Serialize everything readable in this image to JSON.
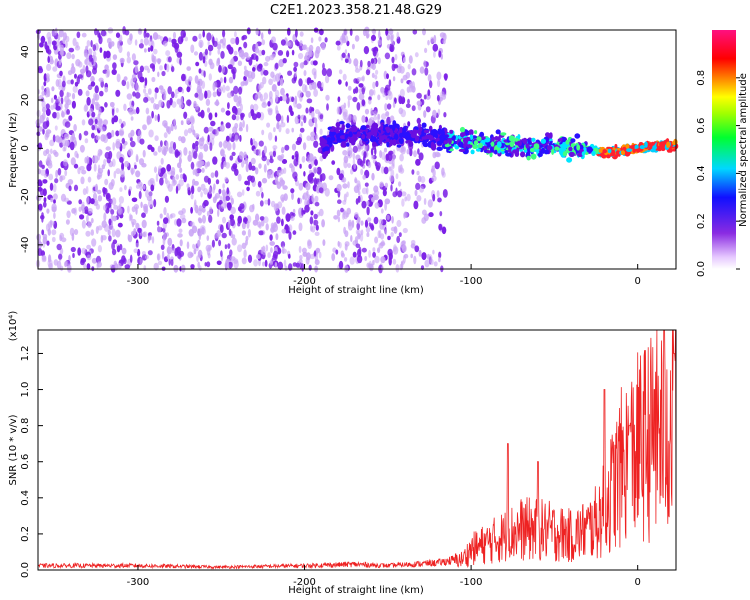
{
  "title": "C2E1.2023.358.21.48.G29",
  "colors": {
    "snr_line": "#ee2222",
    "scatter_dots": "#7b1fe6",
    "axis": "#000000"
  },
  "chart_data": [
    {
      "type": "heatmap",
      "xlabel": "Height of straight line (km)",
      "ylabel": "Frequency (Hz)",
      "xlim": [
        -360,
        23
      ],
      "ylim": [
        -50,
        49
      ],
      "xticks": [
        -300,
        -200,
        -100,
        0
      ],
      "yticks": [
        -40,
        -20,
        0,
        20,
        40
      ],
      "xtick_labels": [
        "-300",
        "-200",
        "-100",
        "0"
      ],
      "ytick_labels": [
        "-40",
        "-20",
        "0",
        "20",
        "40"
      ],
      "colorbar": {
        "label": "Normalized spectral amplitude",
        "range": [
          0,
          1
        ],
        "ticks": [
          0,
          0.2,
          0.4,
          0.6,
          0.8
        ],
        "tick_labels": [
          "0.0",
          "0.2",
          "0.4",
          "0.6",
          "0.8"
        ],
        "colormap": "rainbow (white-violet-blue-cyan-green-yellow-red-magenta)"
      },
      "features": {
        "noise_band": {
          "x_range": [
            -360,
            -115
          ],
          "freq_range": [
            -50,
            49
          ]
        },
        "signal_band": {
          "points": [
            [
              -185,
              5
            ],
            [
              -150,
              6
            ],
            [
              -130,
              5
            ],
            [
              -100,
              3
            ],
            [
              -75,
              1
            ],
            [
              -50,
              1
            ],
            [
              -30,
              0
            ],
            [
              -20,
              -2
            ],
            [
              -10,
              -1
            ],
            [
              0,
              0
            ],
            [
              10,
              1
            ],
            [
              20,
              1
            ]
          ]
        }
      }
    },
    {
      "type": "line",
      "xlabel": "Height of straight line (km)",
      "ylabel": "SNR (10 * v/v)",
      "y_scale_note": "(x10⁴)",
      "xlim": [
        -360,
        23
      ],
      "ylim": [
        0,
        1.33
      ],
      "xticks": [
        -300,
        -200,
        -100,
        0
      ],
      "yticks": [
        0,
        0.2,
        0.4,
        0.6,
        0.8,
        1.0,
        1.2
      ],
      "xtick_labels": [
        "-300",
        "-200",
        "-100",
        "0"
      ],
      "ytick_labels": [
        "0.0",
        "0.2",
        "0.4",
        "0.6",
        "0.8",
        "1.0",
        "1.2"
      ],
      "series": [
        {
          "x": [
            -360,
            -300,
            -250,
            -200,
            -170,
            -150,
            -120,
            -105,
            -100,
            -90,
            -80,
            -70,
            -60,
            -50,
            -40,
            -30,
            -25,
            -20,
            -15,
            -10,
            -5,
            0,
            5,
            10,
            15,
            20,
            23
          ],
          "y": [
            0.03,
            0.03,
            0.02,
            0.03,
            0.04,
            0.03,
            0.05,
            0.08,
            0.15,
            0.2,
            0.25,
            0.3,
            0.3,
            0.28,
            0.25,
            0.3,
            0.35,
            0.45,
            0.6,
            0.75,
            0.82,
            0.9,
            0.95,
            1.0,
            1.05,
            1.08,
            1.1
          ],
          "peaks": [
            [
              -78,
              0.7
            ],
            [
              -60,
              0.6
            ],
            [
              -20,
              1.0
            ],
            [
              -5,
              0.8
            ],
            [
              10,
              1.0
            ],
            [
              16,
              1.33
            ],
            [
              22,
              1.2
            ]
          ]
        }
      ]
    }
  ]
}
